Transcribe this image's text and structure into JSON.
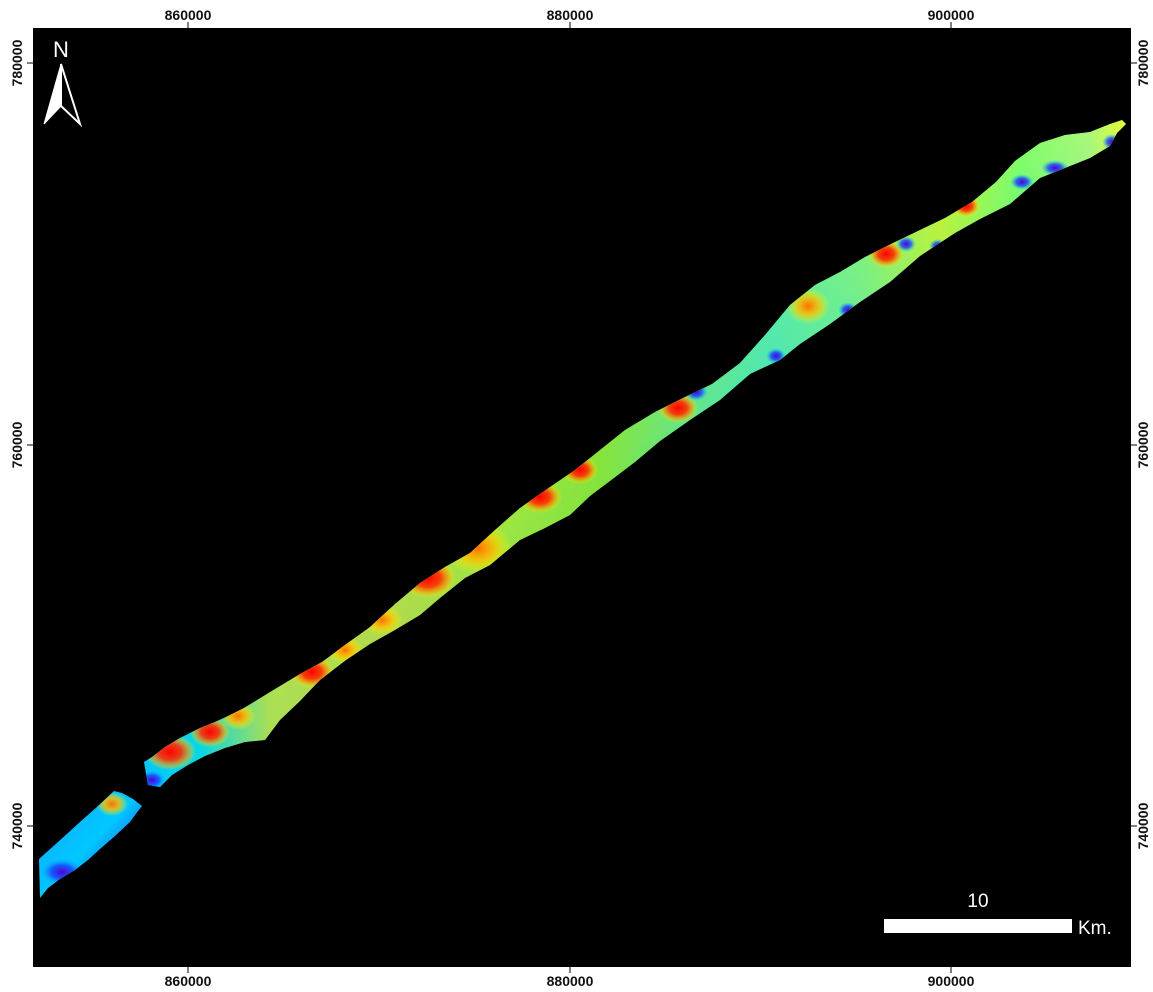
{
  "map": {
    "x_ticks": [
      "860000",
      "880000",
      "900000"
    ],
    "y_ticks": [
      "780000",
      "760000",
      "740000"
    ],
    "north_label": "N",
    "scale_bar": {
      "value": "10",
      "unit": "Km."
    }
  },
  "colors": {
    "frame_background": "#000000",
    "page_background": "#ffffff",
    "anomaly_ramp": [
      "#6a00d8",
      "#1a3cff",
      "#00c8ff",
      "#20e6b0",
      "#7fe600",
      "#ffff00",
      "#ff9a00",
      "#ff0000"
    ]
  }
}
